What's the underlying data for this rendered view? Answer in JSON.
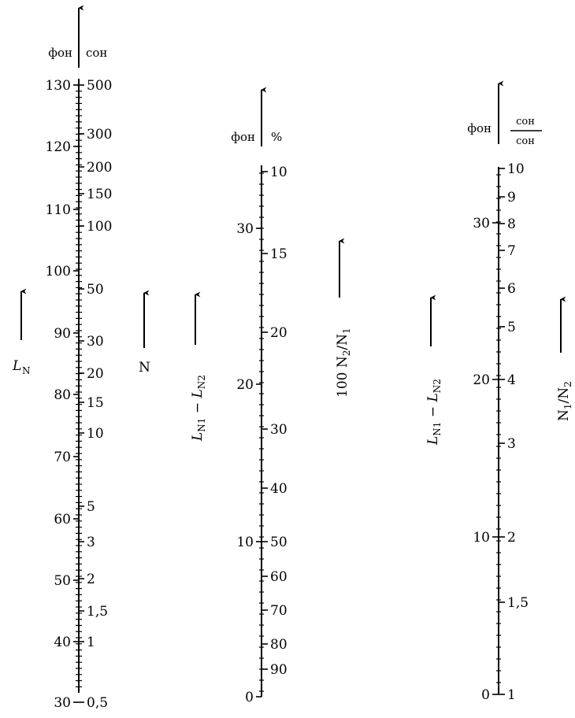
{
  "scales": [
    {
      "id": "loudness",
      "unit_left": "фон",
      "unit_right": "сон",
      "left_ticks": [
        "130",
        "120",
        "110",
        "100",
        "90",
        "80",
        "70",
        "60",
        "50",
        "40",
        "30"
      ],
      "right_ticks": [
        "500",
        "300",
        "200",
        "150",
        "100",
        "50",
        "30",
        "20",
        "15",
        "10",
        "5",
        "3",
        "2",
        "1,5",
        "1",
        "0,5"
      ],
      "arrow_labels": [
        {
          "main": "L",
          "sub": "N",
          "italic_main": true
        },
        {
          "main": "N",
          "sub": "",
          "italic_main": false
        }
      ]
    },
    {
      "id": "level-diff-percent",
      "unit_left": "фон",
      "unit_right": "%",
      "left_ticks": [
        "30",
        "20",
        "10",
        "0"
      ],
      "right_ticks": [
        "10",
        "15",
        "20",
        "30",
        "40",
        "50",
        "60",
        "70",
        "80",
        "90"
      ],
      "arrow_labels": [
        {
          "text": "L_N1 − L_N2"
        },
        {
          "text": "100 N_2/N_1"
        }
      ]
    },
    {
      "id": "level-diff-ratio",
      "unit_left": "фон",
      "unit_right_num": "сон",
      "unit_right_den": "сон",
      "left_ticks": [
        "30",
        "20",
        "10",
        "0"
      ],
      "right_ticks": [
        "10",
        "9",
        "8",
        "7",
        "6",
        "5",
        "4",
        "3",
        "2",
        "1,5",
        "1"
      ],
      "arrow_labels": [
        {
          "text": "L_N1 − L_N2"
        },
        {
          "text": "N_1/N_2"
        }
      ]
    }
  ]
}
